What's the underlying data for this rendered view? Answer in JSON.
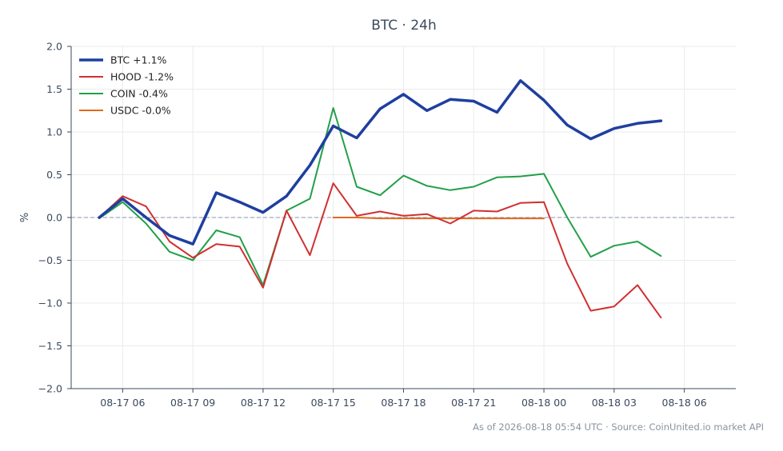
{
  "chart_data": {
    "type": "line",
    "title": "BTC · 24h",
    "ylabel": "%",
    "xlabel": "",
    "ylim": [
      -2.0,
      2.0
    ],
    "yticks": [
      2.0,
      1.5,
      1.0,
      0.5,
      0.0,
      -0.5,
      -1.0,
      -1.5,
      -2.0
    ],
    "ytick_labels": [
      "2.0",
      "1.5",
      "1.0",
      "0.5",
      "0.0",
      "−0.5",
      "−1.0",
      "−1.5",
      "−2.0"
    ],
    "xlim": [
      -2.2,
      26.2
    ],
    "xticks": [
      0,
      3,
      6,
      9,
      12,
      15,
      18,
      21,
      24
    ],
    "xtick_labels": [
      "08-17 06",
      "08-17 09",
      "08-17 12",
      "08-17 15",
      "08-17 18",
      "08-17 21",
      "08-18 00",
      "08-18 03",
      "08-18 06"
    ],
    "zero_line": true,
    "grid": true,
    "legend_position": "top-left",
    "series": [
      {
        "name": "BTC +1.1%",
        "color": "#1f3f9f",
        "width": 3.5,
        "x": [
          -1,
          0,
          1,
          2,
          3,
          4,
          5,
          6,
          7,
          8,
          9,
          10,
          11,
          12,
          13,
          14,
          15,
          16,
          17,
          18,
          19,
          20,
          21,
          22,
          23
        ],
        "y": [
          0.0,
          0.22,
          0.0,
          -0.21,
          -0.31,
          0.29,
          0.18,
          0.06,
          0.25,
          0.61,
          1.07,
          0.93,
          1.27,
          1.44,
          1.25,
          1.38,
          1.36,
          1.23,
          1.6,
          1.37,
          1.08,
          0.92,
          1.04,
          1.1,
          1.13
        ]
      },
      {
        "name": "HOOD -1.2%",
        "color": "#d13030",
        "width": 2,
        "x": [
          -1,
          0,
          1,
          2,
          3,
          4,
          5,
          6,
          7,
          8,
          9,
          10,
          11,
          12,
          13,
          14,
          15,
          16,
          17,
          18,
          19,
          20,
          21,
          22,
          23
        ],
        "y": [
          0.0,
          0.25,
          0.13,
          -0.28,
          -0.47,
          -0.31,
          -0.34,
          -0.82,
          0.08,
          -0.44,
          0.4,
          0.02,
          0.07,
          0.02,
          0.04,
          -0.07,
          0.08,
          0.07,
          0.17,
          0.18,
          -0.54,
          -1.09,
          -1.04,
          -0.79,
          -1.17
        ]
      },
      {
        "name": "COIN -0.4%",
        "color": "#22a048",
        "width": 2,
        "x": [
          -1,
          0,
          1,
          2,
          3,
          4,
          5,
          6,
          7,
          8,
          9,
          10,
          11,
          12,
          13,
          14,
          15,
          16,
          17,
          18,
          19,
          20,
          21,
          22,
          23
        ],
        "y": [
          -0.01,
          0.18,
          -0.07,
          -0.4,
          -0.5,
          -0.15,
          -0.23,
          -0.79,
          0.08,
          0.22,
          1.28,
          0.36,
          0.26,
          0.49,
          0.37,
          0.32,
          0.36,
          0.47,
          0.48,
          0.51,
          0.0,
          -0.46,
          -0.33,
          -0.28,
          -0.45
        ]
      },
      {
        "name": "USDC -0.0%",
        "color": "#e06a1e",
        "width": 2,
        "x": [
          9,
          10,
          11,
          12,
          13,
          14,
          15,
          16,
          17,
          18
        ],
        "y": [
          0.0,
          0.0,
          -0.01,
          -0.01,
          -0.01,
          -0.01,
          -0.01,
          -0.01,
          -0.01,
          -0.01
        ]
      }
    ]
  },
  "footer": {
    "text": "As of 2026-08-18 05:54 UTC · Source: CoinUnited.io market API"
  }
}
